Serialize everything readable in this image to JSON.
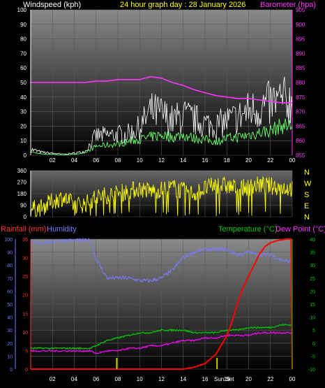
{
  "header": {
    "windspeed_label": "Windspeed (kph)",
    "title": "24 hour graph day : 28 January 2026",
    "barometer_label": "Barometer (hpa)"
  },
  "lower_header": {
    "rainfall_label": "Rainfall (mm)",
    "humidity_label": "Humidity",
    "temperature_label": "Temperature (°C)",
    "dewpoint_label": "Dew Point (°C)"
  },
  "compass": [
    "N",
    "W",
    "S",
    "E",
    "N"
  ],
  "sunrise_label": "Sun Rise",
  "sunset_label": "Sun Set",
  "colors": {
    "windspeed": "#ffffff",
    "windavg": "#66ff66",
    "barometer": "#ff33ff",
    "winddir": "#ffff00",
    "humidity": "#7a7aff",
    "temperature": "#00cc00",
    "dewpoint": "#ff00ff",
    "rainfall": "#ff0000",
    "sun": "#cccc00"
  },
  "chart_data": [
    {
      "type": "line",
      "name": "wind-barometer",
      "xlabel": "",
      "ylabel": "Windspeed (kph)",
      "y2label": "Barometer (hpa)",
      "ylim": [
        0,
        100
      ],
      "y2lim": [
        855,
        905
      ],
      "xticks": [
        "02",
        "04",
        "06",
        "08",
        "10",
        "12",
        "14",
        "16",
        "18",
        "20",
        "22",
        "00"
      ],
      "yticks": [
        0,
        10,
        20,
        30,
        40,
        50,
        60,
        70,
        80,
        90,
        100
      ],
      "y2ticks": [
        855,
        860,
        865,
        870,
        875,
        880,
        885,
        890,
        895,
        900,
        905
      ],
      "barometer": {
        "x": [
          0,
          2,
          4,
          5,
          6,
          7,
          8,
          9,
          10,
          11,
          12,
          13,
          14,
          15,
          16,
          17,
          18,
          19,
          20,
          21,
          22,
          23,
          24
        ],
        "y": [
          880,
          880,
          880,
          880,
          880.5,
          880.5,
          881,
          881,
          881,
          882,
          881.5,
          880,
          879,
          877.5,
          876.5,
          875.5,
          875,
          874.5,
          874.5,
          874,
          873.5,
          873,
          873
        ]
      },
      "windspeed_gust_envelope": {
        "x": [
          0,
          1,
          2,
          3,
          4,
          5,
          6,
          7,
          8,
          9,
          10,
          11,
          12,
          13,
          14,
          15,
          16,
          17,
          18,
          19,
          20,
          21,
          22,
          23,
          24
        ],
        "y": [
          6,
          3,
          2,
          1,
          2,
          4,
          20,
          20,
          21,
          22,
          28,
          44,
          42,
          35,
          40,
          36,
          32,
          30,
          35,
          38,
          45,
          48,
          52,
          55,
          54
        ]
      },
      "windspeed_avg_envelope": {
        "x": [
          0,
          1,
          2,
          3,
          4,
          5,
          6,
          7,
          8,
          9,
          10,
          11,
          12,
          13,
          14,
          15,
          16,
          17,
          18,
          19,
          20,
          21,
          22,
          23,
          24
        ],
        "y": [
          3,
          1,
          1,
          0,
          1,
          2,
          8,
          9,
          10,
          12,
          14,
          16,
          18,
          16,
          18,
          15,
          14,
          12,
          15,
          16,
          18,
          20,
          22,
          26,
          26
        ]
      }
    },
    {
      "type": "line",
      "name": "wind-direction",
      "xlabel": "",
      "ylabel": "",
      "ylim": [
        0,
        360
      ],
      "yticks": [
        0,
        90,
        180,
        270,
        360
      ],
      "y": [
        60,
        70,
        120,
        150,
        90,
        100,
        150,
        170,
        180,
        200,
        220,
        200,
        210,
        230,
        200,
        180,
        220,
        250,
        240,
        220,
        230,
        250,
        240,
        230,
        220
      ]
    },
    {
      "type": "line",
      "name": "rain-humidity-temp",
      "xlabel": "",
      "ylabel": "Rainfall (mm)",
      "y2label": "Temperature (°C)",
      "ylim_humidity": [
        0,
        100
      ],
      "ylim_rain": [
        0,
        35
      ],
      "ylim_temp": [
        -10,
        40
      ],
      "xticks": [
        "02",
        "04",
        "06",
        "08",
        "10",
        "12",
        "14",
        "16",
        "18",
        "20",
        "22",
        "00"
      ],
      "humidity_ticks": [
        0,
        10,
        20,
        30,
        40,
        50,
        60,
        70,
        80,
        90,
        100
      ],
      "rain_ticks": [
        0,
        5,
        10,
        15,
        20,
        25,
        30,
        35
      ],
      "temp_ticks": [
        -10,
        -5,
        0,
        5,
        10,
        15,
        20,
        25,
        30,
        35,
        40
      ],
      "humidity": {
        "x": [
          0,
          1,
          2,
          3,
          4,
          5,
          5.5,
          6,
          7,
          8,
          9,
          10,
          11,
          12,
          13,
          14,
          15,
          16,
          17,
          18,
          19,
          20,
          21,
          22,
          23,
          24
        ],
        "y": [
          97,
          97,
          98,
          99,
          99,
          99,
          99,
          85,
          70,
          70,
          70,
          68,
          68,
          70,
          76,
          86,
          90,
          92,
          92,
          92,
          88,
          90,
          88,
          88,
          84,
          82
        ]
      },
      "temperature": {
        "x": [
          0,
          1,
          2,
          3,
          4,
          5,
          5.5,
          6,
          7,
          8,
          9,
          10,
          11,
          12,
          13,
          14,
          15,
          16,
          17,
          18,
          19,
          20,
          21,
          22,
          23,
          24
        ],
        "y": [
          -2,
          -2,
          -2,
          -2,
          -2,
          -2,
          -2,
          -1,
          1,
          2,
          3,
          4,
          4,
          5,
          5,
          5,
          4,
          4,
          4,
          5,
          5,
          6,
          6,
          6,
          7,
          7
        ]
      },
      "dewpoint": {
        "x": [
          0,
          1,
          2,
          3,
          4,
          5,
          5.5,
          6,
          7,
          8,
          9,
          10,
          11,
          12,
          13,
          14,
          15,
          16,
          17,
          18,
          19,
          20,
          21,
          22,
          23,
          24
        ],
        "y": [
          -3,
          -3,
          -3,
          -3,
          -3,
          -3,
          -3,
          -4,
          -3,
          -3,
          -2,
          -2,
          -1,
          -1,
          0,
          1,
          1,
          2,
          2,
          3,
          3,
          3,
          4,
          4,
          4,
          4
        ]
      },
      "rainfall": {
        "x": [
          0,
          14,
          15,
          16,
          17,
          18,
          18.5,
          19,
          19.5,
          20,
          20.5,
          21,
          21.5,
          22,
          22.5,
          23,
          23.5,
          23.9,
          24
        ],
        "y": [
          0,
          0,
          0.5,
          1.5,
          4,
          9,
          13,
          18,
          22,
          25,
          28,
          31,
          33,
          34,
          34.5,
          34.8,
          35,
          35,
          0
        ]
      }
    }
  ]
}
